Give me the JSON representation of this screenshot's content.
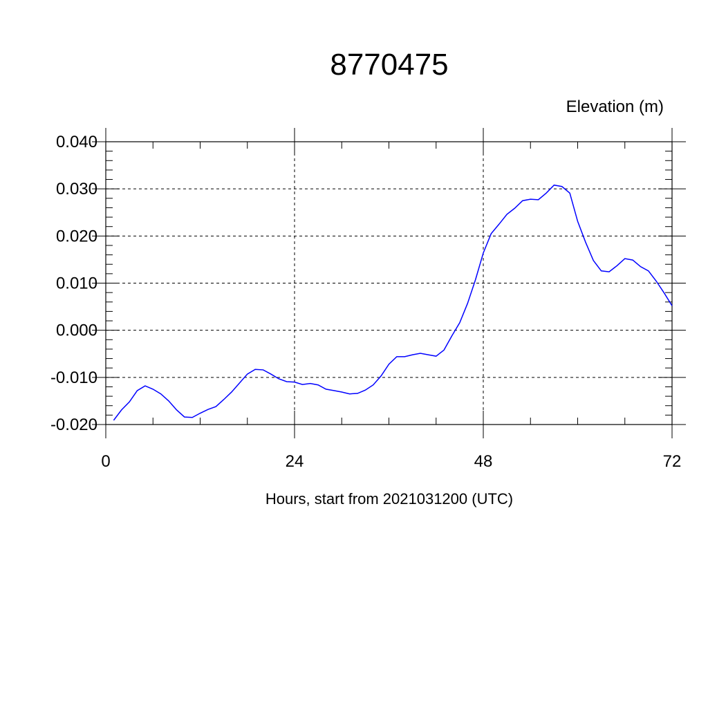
{
  "chart_data": {
    "type": "line",
    "title": "8770475",
    "y_label": "Elevation (m)",
    "x_label": "Hours, start from 2021031200 (UTC)",
    "x": [
      1,
      2,
      3,
      4,
      5,
      6,
      7,
      8,
      9,
      10,
      11,
      12,
      13,
      14,
      15,
      16,
      17,
      18,
      19,
      20,
      21,
      22,
      23,
      24,
      25,
      26,
      27,
      28,
      29,
      30,
      31,
      32,
      33,
      34,
      35,
      36,
      37,
      38,
      39,
      40,
      41,
      42,
      43,
      44,
      45,
      46,
      47,
      48,
      49,
      50,
      51,
      52,
      53,
      54,
      55,
      56,
      57,
      58,
      59,
      60,
      61,
      62,
      63,
      64,
      65,
      66,
      67,
      68,
      69,
      70,
      71,
      72
    ],
    "series": [
      {
        "color": "#0000ff",
        "values": [
          -0.0191,
          -0.0169,
          -0.0152,
          -0.0128,
          -0.0118,
          -0.0125,
          -0.0135,
          -0.015,
          -0.0169,
          -0.0184,
          -0.0185,
          -0.0176,
          -0.0168,
          -0.0162,
          -0.0147,
          -0.0131,
          -0.0112,
          -0.0093,
          -0.0083,
          -0.0084,
          -0.0093,
          -0.0103,
          -0.0109,
          -0.011,
          -0.0115,
          -0.0113,
          -0.0116,
          -0.0125,
          -0.0128,
          -0.0131,
          -0.0135,
          -0.0134,
          -0.0127,
          -0.0116,
          -0.0097,
          -0.0072,
          -0.0056,
          -0.0056,
          -0.0052,
          -0.0049,
          -0.0052,
          -0.0055,
          -0.0042,
          -0.0012,
          0.0016,
          0.0057,
          0.0107,
          0.0164,
          0.0205,
          0.0225,
          0.0246,
          0.0259,
          0.0275,
          0.0278,
          0.0277,
          0.0291,
          0.0308,
          0.0305,
          0.0291,
          0.0231,
          0.0187,
          0.0148,
          0.0126,
          0.0124,
          0.0137,
          0.0152,
          0.0149,
          0.0135,
          0.0126,
          0.0104,
          0.0079,
          0.0052
        ]
      }
    ],
    "xlim": [
      0,
      72
    ],
    "xticks": [
      0,
      24,
      48,
      72
    ],
    "ylim": [
      -0.02,
      0.04
    ],
    "yticks": [
      {
        "value": -0.02,
        "label": "-0.020"
      },
      {
        "value": -0.01,
        "label": "-0.010"
      },
      {
        "value": 0,
        "label": "0.000"
      },
      {
        "value": 0.01,
        "label": "0.010"
      },
      {
        "value": 0.02,
        "label": "0.020"
      },
      {
        "value": 0.03,
        "label": "0.030"
      },
      {
        "value": 0.04,
        "label": "0.040"
      }
    ],
    "grid": true
  }
}
